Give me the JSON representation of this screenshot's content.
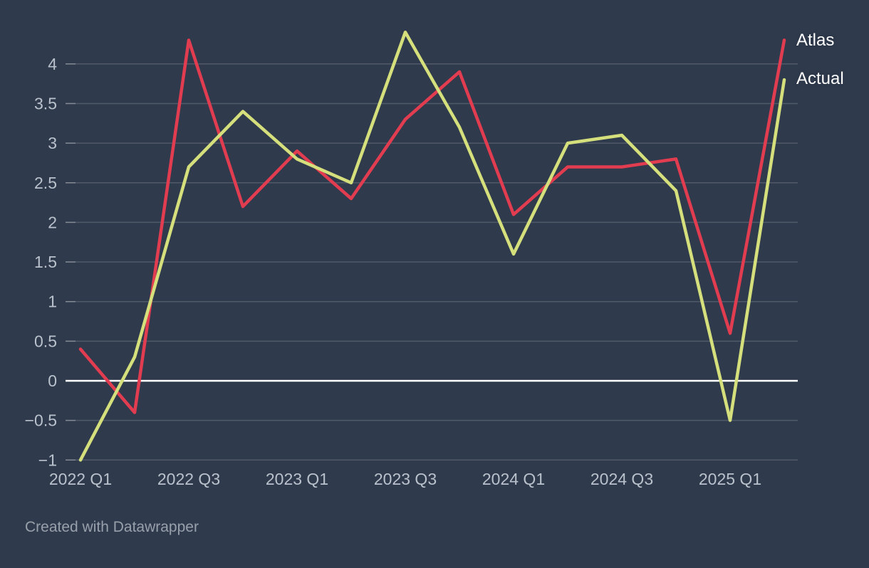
{
  "page": {
    "background_color": "#2f3a4c",
    "caption": "Created with Datawrapper"
  },
  "chart_data": {
    "type": "line",
    "title": "",
    "xlabel": "",
    "ylabel": "",
    "x": [
      "2022 Q1",
      "2022 Q2",
      "2022 Q3",
      "2022 Q4",
      "2023 Q1",
      "2023 Q2",
      "2023 Q3",
      "2023 Q4",
      "2024 Q1",
      "2024 Q2",
      "2024 Q3",
      "2024 Q4",
      "2025 Q1",
      "2025 Q2"
    ],
    "series": [
      {
        "name": "Atlas",
        "color": "#e23c50",
        "values": [
          0.4,
          -0.4,
          4.3,
          2.2,
          2.9,
          2.3,
          3.3,
          3.9,
          2.1,
          2.7,
          2.7,
          2.8,
          0.6,
          4.3
        ]
      },
      {
        "name": "Actual",
        "color": "#d5e07c",
        "values": [
          -1.0,
          0.3,
          2.7,
          3.4,
          2.8,
          2.5,
          4.4,
          3.2,
          1.6,
          3.0,
          3.1,
          2.4,
          -0.5,
          3.8
        ]
      }
    ],
    "x_tick_labels": [
      "2022 Q1",
      "2022 Q3",
      "2023 Q1",
      "2023 Q3",
      "2024 Q1",
      "2024 Q3",
      "2025 Q1"
    ],
    "y_ticks": [
      4,
      3.5,
      3,
      2.5,
      2,
      1.5,
      1,
      0.5,
      0,
      -0.5,
      -1
    ],
    "y_tick_labels": [
      "4",
      "3.5",
      "3",
      "2.5",
      "2",
      "1.5",
      "1",
      "0.5",
      "0",
      "−0.5",
      "−1"
    ],
    "ylim": [
      -1,
      4.4
    ],
    "grid": "horizontal",
    "zero_line": true,
    "zero_line_color": "#ffffff",
    "grid_color": "rgba(255,255,255,0.16)",
    "tick_label_color": "#b9c1cc",
    "legend_position": "right-of-line-ends"
  }
}
